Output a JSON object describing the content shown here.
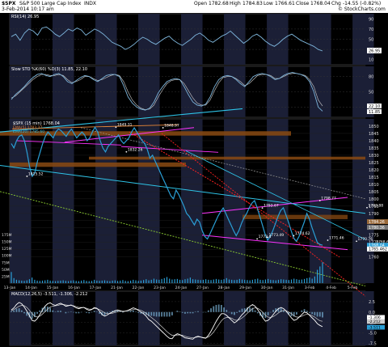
{
  "header": {
    "symbol": "$SPX",
    "name": "S&P 500 Large Cap Index",
    "exchange": "INDX",
    "date": "3-Feb-2014 10:17 am",
    "brand": "© StockCharts.com",
    "open_label": "Open",
    "open": "1782.68",
    "high_label": "High",
    "high": "1784.83",
    "low_label": "Low",
    "low": "1766.61",
    "close_label": "Close",
    "close": "1768.04",
    "chg_label": "Chg",
    "chg": "-14.55 (-0.82%)"
  },
  "colors": {
    "price": "#2a9fd6",
    "rsi": "#7eb6dc",
    "cyan": "#2ec4e8",
    "magenta": "#ff33ff",
    "orange": "#e0833a",
    "red": "#ff2020",
    "green": "#8ccd30",
    "grey": "#9a9a9a",
    "band": "#8a4a12",
    "shade": "#1b1f36",
    "volume": "#2a9fd6",
    "white": "#ffffff"
  },
  "chart_data": [
    {
      "type": "line",
      "panel": "rsi",
      "title": "RSI(14) 26.95",
      "ylim": [
        0,
        100
      ],
      "ticks": [
        "90",
        "70",
        "50",
        "30",
        "10"
      ],
      "last_label": "26.95",
      "values": [
        55,
        60,
        48,
        62,
        70,
        66,
        58,
        72,
        74,
        68,
        60,
        55,
        62,
        70,
        66,
        72,
        68,
        58,
        64,
        70,
        66,
        60,
        52,
        44,
        40,
        36,
        30,
        34,
        40,
        48,
        54,
        50,
        44,
        40,
        46,
        52,
        56,
        48,
        42,
        38,
        44,
        50,
        58,
        62,
        56,
        48,
        44,
        50,
        56,
        60,
        66,
        58,
        50,
        42,
        48,
        56,
        60,
        54,
        46,
        40,
        36,
        42,
        50,
        56,
        60,
        54,
        48,
        44,
        40,
        36,
        30,
        27
      ]
    },
    {
      "type": "line",
      "panel": "stochastic",
      "title": "Slow STO %K(60) %D(3) 11.85, 22.10",
      "ylim": [
        0,
        100
      ],
      "ticks": [
        "80",
        "50",
        "20"
      ],
      "last_labels": [
        "22.10",
        "11.85"
      ],
      "k_values": [
        35,
        45,
        52,
        60,
        70,
        78,
        84,
        86,
        82,
        80,
        84,
        86,
        80,
        70,
        66,
        72,
        78,
        82,
        80,
        74,
        70,
        76,
        82,
        84,
        84,
        80,
        62,
        40,
        28,
        20,
        16,
        14,
        18,
        30,
        48,
        60,
        70,
        74,
        76,
        74,
        60,
        44,
        30,
        24,
        22,
        26,
        40,
        60,
        74,
        80,
        82,
        80,
        74,
        66,
        60,
        70,
        80,
        84,
        86,
        84,
        80,
        74,
        76,
        82,
        86,
        88,
        86,
        84,
        80,
        70,
        50,
        20,
        12
      ],
      "d_values": [
        38,
        42,
        50,
        58,
        66,
        74,
        80,
        84,
        84,
        82,
        82,
        84,
        82,
        74,
        68,
        70,
        74,
        80,
        80,
        76,
        72,
        74,
        78,
        82,
        84,
        82,
        70,
        50,
        34,
        24,
        18,
        15,
        16,
        24,
        40,
        54,
        66,
        72,
        74,
        74,
        66,
        52,
        38,
        28,
        24,
        24,
        34,
        52,
        68,
        78,
        80,
        80,
        76,
        70,
        62,
        66,
        74,
        82,
        84,
        84,
        82,
        76,
        76,
        80,
        84,
        86,
        86,
        84,
        82,
        74,
        60,
        34,
        22
      ]
    },
    {
      "type": "line",
      "panel": "price",
      "title": "$SPX (15 min) 1768.04",
      "legend_ema": "EMA(5) 1783.37",
      "legend_ema2": "EMA(20) 1785.60",
      "ylim": [
        1742,
        1855
      ],
      "ticks": [
        "1850",
        "1845",
        "1840",
        "1835",
        "1830",
        "1825",
        "1820",
        "1815",
        "1810",
        "1805",
        "1800",
        "1795",
        "1790",
        "1785",
        "1780",
        "1775",
        "1770",
        "1765",
        "1760"
      ],
      "right_labels": [
        "1784.26",
        "1780.36",
        "1768.04",
        "1765.462"
      ],
      "annotations": [
        {
          "text": "1815.52",
          "x": 6,
          "y": 1815.5
        },
        {
          "text": "1849.31",
          "x": 40,
          "y": 1849.3
        },
        {
          "text": "1832.26",
          "x": 44,
          "y": 1832.3
        },
        {
          "text": "1848.97",
          "x": 58,
          "y": 1848.9
        },
        {
          "text": "1793.67",
          "x": 96,
          "y": 1793.7
        },
        {
          "text": "1798.77",
          "x": 118,
          "y": 1798.8
        },
        {
          "text": "1793.88",
          "x": 136,
          "y": 1793.9
        },
        {
          "text": "1773.49",
          "x": 98,
          "y": 1773.5
        },
        {
          "text": "1772.4",
          "x": 94,
          "y": 1772.4
        },
        {
          "text": "1774.62",
          "x": 108,
          "y": 1774.6
        },
        {
          "text": "1771.46",
          "x": 121,
          "y": 1771.5
        },
        {
          "text": "1770.76",
          "x": 132,
          "y": 1770.8
        },
        {
          "text": "1768.61",
          "x": 139,
          "y": 1768.6
        }
      ],
      "x_labels": [
        "13-Jan",
        "14-Jan",
        "15-Jan",
        "16-Jan",
        "17-Jan",
        "21-Jan",
        "22-Jan",
        "23-Jan",
        "24-Jan",
        "27-Jan",
        "28-Jan",
        "29-Jan",
        "30-Jan",
        "31-Jan",
        "3-Feb",
        "4-Feb",
        "5-Feb"
      ],
      "values": [
        1838,
        1835,
        1840,
        1843,
        1844,
        1840,
        1832,
        1822,
        1815.5,
        1818,
        1826,
        1832,
        1838,
        1843,
        1846,
        1844,
        1842,
        1846,
        1848,
        1847,
        1845,
        1843,
        1846,
        1848,
        1845,
        1842,
        1844,
        1846,
        1844,
        1840,
        1842,
        1846,
        1849.3,
        1846,
        1840,
        1835,
        1832.3,
        1836,
        1838,
        1840,
        1842,
        1844,
        1840,
        1838,
        1840,
        1842,
        1846,
        1848.9,
        1846,
        1843,
        1840,
        1838,
        1834,
        1828,
        1830,
        1826,
        1822,
        1818,
        1814,
        1810,
        1806,
        1802,
        1800,
        1806,
        1803,
        1799,
        1795,
        1790,
        1788,
        1785,
        1782,
        1786,
        1784,
        1778,
        1774,
        1772.4,
        1776,
        1780,
        1784,
        1788,
        1791,
        1793.7,
        1790,
        1786,
        1782,
        1778,
        1774.6,
        1778,
        1783,
        1787,
        1790,
        1794,
        1797,
        1798.8,
        1794,
        1788,
        1782,
        1776,
        1771.5,
        1774,
        1778,
        1783,
        1788,
        1792,
        1793.9,
        1789,
        1784,
        1778,
        1773,
        1770.8,
        1774,
        1779,
        1784,
        1790,
        1786,
        1780,
        1775,
        1770,
        1768.6,
        1768.04
      ]
    },
    {
      "type": "bar",
      "panel": "volume",
      "ticks": [
        "175M",
        "150M",
        "125M",
        "100M",
        "75M",
        "50M",
        "25M"
      ],
      "ylim": [
        0,
        175
      ],
      "values": [
        40,
        18,
        12,
        10,
        9,
        8,
        10,
        14,
        20,
        12,
        9,
        8,
        9,
        10,
        12,
        9,
        8,
        7,
        8,
        9,
        10,
        8,
        7,
        9,
        10,
        8,
        7,
        9,
        11,
        8,
        7,
        8,
        12,
        9,
        8,
        9,
        10,
        8,
        7,
        9,
        10,
        8,
        9,
        11,
        8,
        7,
        9,
        12,
        10,
        8,
        9,
        11,
        14,
        10,
        12,
        16,
        13,
        12,
        15,
        18,
        22,
        16,
        13,
        14,
        15,
        12,
        11,
        14,
        16,
        20,
        14,
        13,
        12,
        11,
        12,
        14,
        12,
        11,
        13,
        15,
        13,
        12,
        14,
        18,
        13,
        12,
        11,
        12,
        15,
        13,
        12,
        11,
        10,
        12,
        14,
        16,
        12,
        11,
        13,
        15,
        12,
        11,
        10,
        12,
        14,
        13,
        12,
        11,
        13,
        16,
        14,
        12,
        13,
        15,
        18,
        20,
        16,
        24,
        48,
        60,
        75
      ]
    },
    {
      "type": "line",
      "panel": "macd",
      "title": "MACD(12,26,5) -3.511, -1.306, -2.212",
      "ylim": [
        -8,
        5
      ],
      "ticks": [
        "2.5",
        "0.0",
        "-2.5",
        "-5.0",
        "-7.5"
      ],
      "last_labels": [
        "-1.306",
        "-2.212",
        "-3.511"
      ],
      "macd": [
        0.5,
        1.0,
        1.8,
        2.3,
        2.0,
        1.2,
        0.2,
        -0.9,
        -2.0,
        -2.2,
        -1.6,
        -0.6,
        0.5,
        1.4,
        2.0,
        2.2,
        1.8,
        1.6,
        1.9,
        2.1,
        1.8,
        1.4,
        1.5,
        1.7,
        1.4,
        1.0,
        0.8,
        1.0,
        1.1,
        0.7,
        0.4,
        0.6,
        1.1,
        0.9,
        0.2,
        -0.6,
        -1.0,
        -0.7,
        -0.3,
        0.0,
        0.3,
        0.5,
        0.3,
        0.1,
        0.2,
        0.4,
        0.7,
        1.0,
        0.8,
        0.4,
        0.0,
        -0.4,
        -1.0,
        -1.8,
        -2.2,
        -2.8,
        -3.4,
        -4.0,
        -4.6,
        -5.2,
        -5.8,
        -6.3,
        -6.4,
        -5.6,
        -5.2,
        -5.4,
        -5.8,
        -6.2,
        -6.3,
        -6.4,
        -6.5,
        -6.0,
        -5.8,
        -6.0,
        -6.2,
        -6.3,
        -5.6,
        -4.6,
        -3.4,
        -2.2,
        -1.2,
        -0.4,
        -0.4,
        -0.8,
        -1.4,
        -2.0,
        -2.6,
        -2.2,
        -1.4,
        -0.6,
        0.0,
        0.8,
        1.4,
        1.8,
        1.4,
        0.6,
        -0.4,
        -1.4,
        -2.2,
        -2.0,
        -1.4,
        -0.6,
        0.2,
        0.8,
        1.1,
        0.8,
        0.2,
        -0.6,
        -1.4,
        -2.0,
        -1.8,
        -1.2,
        -0.6,
        0.0,
        -0.2,
        -0.8,
        -1.4,
        -2.0,
        -2.8,
        -3.2,
        -3.51
      ],
      "signal": [
        0.3,
        0.6,
        1.0,
        1.4,
        1.6,
        1.5,
        1.1,
        0.4,
        -0.4,
        -1.0,
        -1.2,
        -1.0,
        -0.5,
        0.1,
        0.7,
        1.2,
        1.4,
        1.5,
        1.6,
        1.8,
        1.8,
        1.7,
        1.6,
        1.6,
        1.5,
        1.3,
        1.1,
        1.1,
        1.1,
        0.9,
        0.7,
        0.7,
        0.8,
        0.8,
        0.6,
        0.2,
        -0.2,
        -0.4,
        -0.4,
        -0.3,
        -0.1,
        0.1,
        0.2,
        0.2,
        0.2,
        0.3,
        0.4,
        0.6,
        0.7,
        0.6,
        0.4,
        0.1,
        -0.3,
        -0.8,
        -1.3,
        -1.8,
        -2.3,
        -2.9,
        -3.5,
        -4.1,
        -4.7,
        -5.2,
        -5.6,
        -5.6,
        -5.5,
        -5.5,
        -5.6,
        -5.8,
        -6.0,
        -6.1,
        -6.2,
        -6.1,
        -6.0,
        -6.0,
        -6.1,
        -6.2,
        -6.0,
        -5.5,
        -4.8,
        -3.9,
        -3.0,
        -2.1,
        -1.5,
        -1.3,
        -1.3,
        -1.5,
        -1.9,
        -2.0,
        -1.8,
        -1.4,
        -0.9,
        -0.3,
        0.3,
        0.8,
        1.0,
        0.9,
        0.5,
        -0.1,
        -0.8,
        -1.2,
        -1.3,
        -1.1,
        -0.7,
        -0.2,
        0.2,
        0.4,
        0.3,
        0.0,
        -0.4,
        -0.9,
        -1.2,
        -1.2,
        -1.0,
        -0.7,
        -0.5,
        -0.6,
        -0.9,
        -1.2,
        -1.7,
        -2.1,
        -2.21
      ]
    }
  ]
}
